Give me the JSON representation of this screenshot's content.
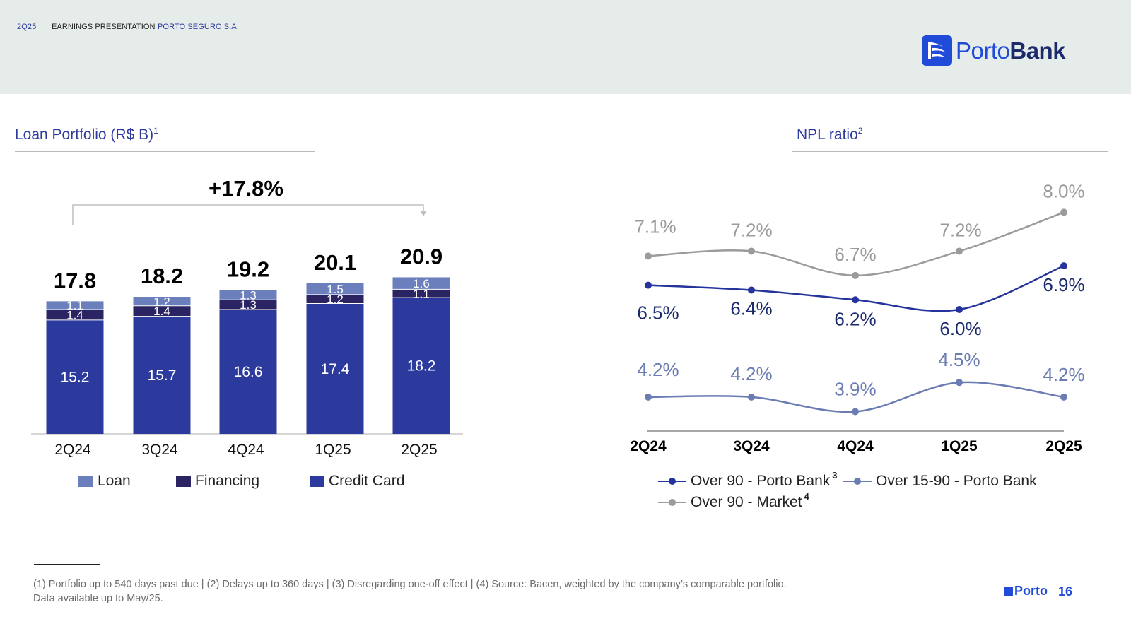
{
  "header": {
    "quarter": "2Q25",
    "presentation": "EARNINGS PRESENTATION",
    "company": "PORTO SEGURO S.A.",
    "logo_text_1": "Porto",
    "logo_text_2": "Bank"
  },
  "colors": {
    "loan": "#6b7fbd",
    "financing": "#2a2562",
    "credit_card": "#2c3a9e",
    "over90_bank": "#25339c",
    "over15_90_bank": "#6a7cb3",
    "over90_market": "#9b9b9b",
    "accent": "#2c3a9e"
  },
  "loan_section": {
    "title": "Loan Portfolio (R$ B)",
    "title_sup": "1",
    "growth_label": "+17.8%"
  },
  "npl_section": {
    "title": "NPL ratio",
    "title_sup": "2"
  },
  "chart_data": [
    {
      "type": "bar",
      "stacked": true,
      "title": "Loan Portfolio (R$ B)",
      "categories": [
        "2Q24",
        "3Q24",
        "4Q24",
        "1Q25",
        "2Q25"
      ],
      "series": [
        {
          "name": "Credit Card",
          "values": [
            15.2,
            15.7,
            16.6,
            17.4,
            18.2
          ],
          "labels": [
            "15.2",
            "15.7",
            "16.6",
            "17.4",
            "18.2"
          ]
        },
        {
          "name": "Financing",
          "values": [
            1.4,
            1.4,
            1.3,
            1.2,
            1.1
          ],
          "labels": [
            "1.4",
            "1.4",
            "1.3",
            "1.2",
            "1.1"
          ]
        },
        {
          "name": "Loan",
          "values": [
            1.1,
            1.2,
            1.3,
            1.5,
            1.6
          ],
          "labels": [
            "1.1",
            "1.2",
            "1.3",
            "1.5",
            "1.6"
          ]
        }
      ],
      "totals": [
        17.8,
        18.2,
        19.2,
        20.1,
        20.9
      ],
      "total_labels": [
        "17.8",
        "18.2",
        "19.2",
        "20.1",
        "20.9"
      ],
      "legend": [
        "Loan",
        "Financing",
        "Credit Card"
      ],
      "annotation": "+17.8%",
      "ylim": [
        0,
        21
      ],
      "grid": false
    },
    {
      "type": "line",
      "title": "NPL ratio",
      "categories": [
        "2Q24",
        "3Q24",
        "4Q24",
        "1Q25",
        "2Q25"
      ],
      "series": [
        {
          "name": "Over 90 - Porto Bank",
          "sup": "3",
          "values": [
            6.5,
            6.4,
            6.2,
            6.0,
            6.9
          ],
          "labels": [
            "6.5%",
            "6.4%",
            "6.2%",
            "6.0%",
            "6.9%"
          ]
        },
        {
          "name": "Over 15-90 - Porto Bank",
          "sup": "",
          "values": [
            4.2,
            4.2,
            3.9,
            4.5,
            4.2
          ],
          "labels": [
            "4.2%",
            "4.2%",
            "3.9%",
            "4.5%",
            "4.2%"
          ]
        },
        {
          "name": "Over 90 - Market",
          "sup": "4",
          "values": [
            7.1,
            7.2,
            6.7,
            7.2,
            8.0
          ],
          "labels": [
            "7.1%",
            "7.2%",
            "6.7%",
            "7.2%",
            "8.0%"
          ]
        }
      ],
      "ylim": [
        3.0,
        8.5
      ],
      "grid": false
    }
  ],
  "footnote": {
    "line1": "(1) Portfolio up to 540 days past due | (2) Delays up to 360 days | (3) Disregarding one-off effect | (4) Source: Bacen, weighted by the company’s comparable portfolio.",
    "line2": "Data available up to May/25."
  },
  "footer": {
    "brand": "Porto",
    "page": "16"
  }
}
